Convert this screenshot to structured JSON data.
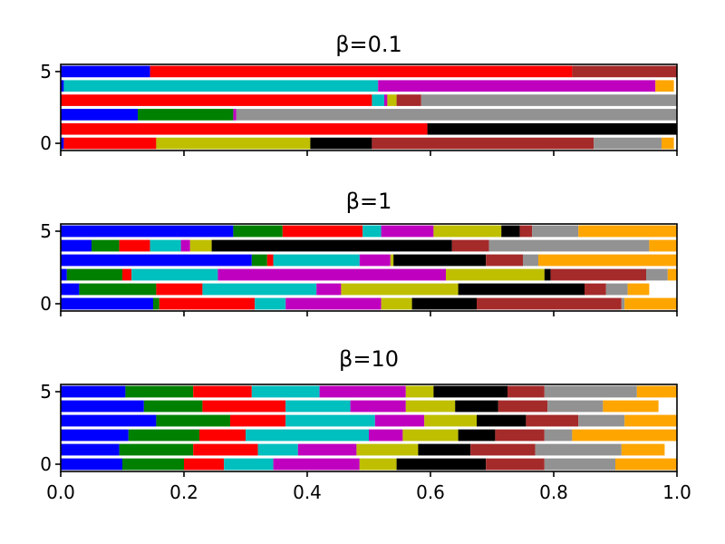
{
  "colors": [
    "#0000ff",
    "#008000",
    "#ff0000",
    "#00bfbf",
    "#bf00bf",
    "#bfbf00",
    "#000000",
    "#a52a2a",
    "#929292",
    "#ffa500"
  ],
  "chart_data": [
    {
      "type": "bar",
      "orientation": "horizontal-stacked",
      "title": "β=0.1",
      "xlim": [
        0,
        1
      ],
      "ylim": [
        -0.5,
        5.5
      ],
      "yticks": [
        {
          "value": 0,
          "label": "0"
        },
        {
          "value": 5,
          "label": "5"
        }
      ],
      "xticks": [
        0,
        0.2,
        0.4,
        0.6,
        0.8,
        1.0
      ],
      "rows": [
        {
          "y": 0,
          "values": [
            0.005,
            0.15,
            0.25,
            0.1,
            0.36,
            0.11,
            0.02
          ]
        },
        {
          "y": 1,
          "values": [
            0,
            0,
            0.595,
            0.405
          ]
        },
        {
          "y": 2,
          "values": [
            0.125,
            0.155,
            0.005,
            0.715
          ]
        },
        {
          "y": 3,
          "values": [
            0,
            0,
            0.505,
            0.02,
            0.005,
            0.015,
            0,
            0.04,
            0.415
          ]
        },
        {
          "y": 4,
          "values": [
            0.005,
            0.51,
            0.45,
            0.03
          ]
        },
        {
          "y": 5,
          "values": [
            0.145,
            0.685,
            0.17
          ]
        }
      ],
      "row_color_index": [
        [
          0,
          2,
          5,
          6,
          7,
          8,
          9
        ],
        [
          0,
          1,
          2,
          6
        ],
        [
          0,
          1,
          4,
          8
        ],
        [
          0,
          1,
          2,
          3,
          4,
          5,
          6,
          7,
          8
        ],
        [
          0,
          3,
          4,
          9
        ],
        [
          0,
          2,
          7
        ]
      ]
    },
    {
      "type": "bar",
      "orientation": "horizontal-stacked",
      "title": "β=1",
      "xlim": [
        0,
        1
      ],
      "ylim": [
        -0.5,
        5.5
      ],
      "yticks": [
        {
          "value": 0,
          "label": "0"
        },
        {
          "value": 5,
          "label": "5"
        }
      ],
      "xticks": [
        0,
        0.2,
        0.4,
        0.6,
        0.8,
        1.0
      ],
      "rows": [
        {
          "y": 0,
          "values": [
            0.15,
            0.01,
            0.155,
            0.05,
            0.155,
            0.05,
            0.105,
            0.235,
            0.005,
            0.085
          ]
        },
        {
          "y": 1,
          "values": [
            0.03,
            0.125,
            0.075,
            0.185,
            0.04,
            0.19,
            0.205,
            0.035,
            0.035,
            0.035
          ]
        },
        {
          "y": 2,
          "values": [
            0.01,
            0.09,
            0.015,
            0.14,
            0.37,
            0.16,
            0.01,
            0.155,
            0.035,
            0.015
          ]
        },
        {
          "y": 3,
          "values": [
            0.31,
            0.025,
            0.01,
            0.14,
            0.05,
            0.005,
            0.15,
            0.06,
            0.025,
            0.225
          ]
        },
        {
          "y": 4,
          "values": [
            0.05,
            0.045,
            0.05,
            0.05,
            0.015,
            0.035,
            0.39,
            0.06,
            0.26,
            0.045
          ]
        },
        {
          "y": 5,
          "values": [
            0.28,
            0.08,
            0.13,
            0.03,
            0.085,
            0.11,
            0.03,
            0.02,
            0.075,
            0.16
          ]
        }
      ]
    },
    {
      "type": "bar",
      "orientation": "horizontal-stacked",
      "title": "β=10",
      "xlim": [
        0,
        1
      ],
      "ylim": [
        -0.5,
        5.5
      ],
      "yticks": [
        {
          "value": 0,
          "label": "0"
        },
        {
          "value": 5,
          "label": "5"
        }
      ],
      "xticks": [
        0,
        0.2,
        0.4,
        0.6,
        0.8,
        1.0
      ],
      "xticklabels": [
        "0.0",
        "0.2",
        "0.4",
        "0.6",
        "0.8",
        "1.0"
      ],
      "rows": [
        {
          "y": 0,
          "values": [
            0.1,
            0.1,
            0.065,
            0.08,
            0.14,
            0.06,
            0.145,
            0.095,
            0.115,
            0.1
          ]
        },
        {
          "y": 1,
          "values": [
            0.095,
            0.12,
            0.105,
            0.065,
            0.095,
            0.1,
            0.085,
            0.105,
            0.14,
            0.07
          ]
        },
        {
          "y": 2,
          "values": [
            0.11,
            0.115,
            0.075,
            0.2,
            0.055,
            0.09,
            0.06,
            0.08,
            0.045,
            0.17
          ]
        },
        {
          "y": 3,
          "values": [
            0.155,
            0.12,
            0.09,
            0.145,
            0.08,
            0.085,
            0.08,
            0.085,
            0.075,
            0.085
          ]
        },
        {
          "y": 4,
          "values": [
            0.135,
            0.095,
            0.135,
            0.105,
            0.09,
            0.08,
            0.07,
            0.08,
            0.09,
            0.09
          ]
        },
        {
          "y": 5,
          "values": [
            0.105,
            0.11,
            0.095,
            0.11,
            0.14,
            0.045,
            0.12,
            0.06,
            0.15,
            0.065
          ]
        }
      ]
    }
  ]
}
